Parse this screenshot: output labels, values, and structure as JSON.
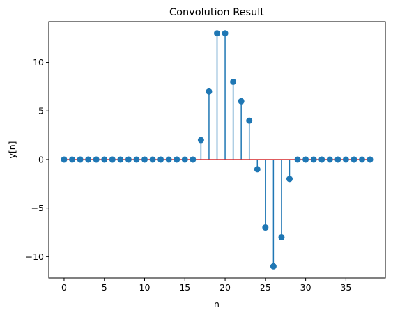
{
  "chart_data": {
    "type": "stem",
    "title": "Convolution Result",
    "xlabel": "n",
    "ylabel": "y[n]",
    "x": [
      0,
      1,
      2,
      3,
      4,
      5,
      6,
      7,
      8,
      9,
      10,
      11,
      12,
      13,
      14,
      15,
      16,
      17,
      18,
      19,
      20,
      21,
      22,
      23,
      24,
      25,
      26,
      27,
      28,
      29,
      30,
      31,
      32,
      33,
      34,
      35,
      36,
      37,
      38
    ],
    "values": [
      0,
      0,
      0,
      0,
      0,
      0,
      0,
      0,
      0,
      0,
      0,
      0,
      0,
      0,
      0,
      0,
      0,
      2,
      7,
      13,
      13,
      8,
      6,
      4,
      -1,
      -7,
      -11,
      -8,
      -2,
      0,
      0,
      0,
      0,
      0,
      0,
      0,
      0,
      0,
      0
    ],
    "xlim": [
      -1.9,
      39.9
    ],
    "ylim": [
      -12.2,
      14.2
    ],
    "xticks": [
      0,
      5,
      10,
      15,
      20,
      25,
      30,
      35
    ],
    "yticks": [
      -10,
      -5,
      0,
      5,
      10
    ],
    "ytick_labels": [
      "−10",
      "−5",
      "0",
      "5",
      "10"
    ],
    "grid": false,
    "colors": {
      "marker": "#1f77b4",
      "stem": "#1f77b4",
      "baseline": "#d62728",
      "axes": "#000000"
    }
  }
}
